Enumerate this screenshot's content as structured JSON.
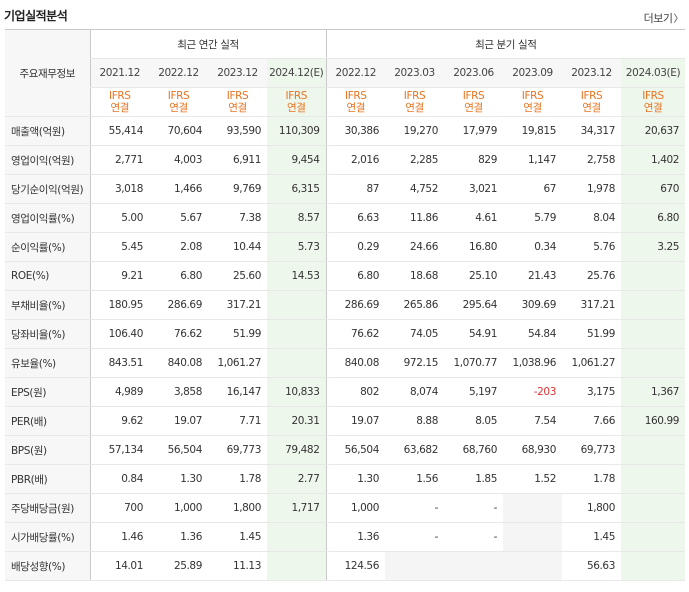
{
  "header": {
    "title": "기업실적분석",
    "more_label": "더보기"
  },
  "table": {
    "label_header": "주요재무정보",
    "annual_group": "최근 연간 실적",
    "quarter_group": "최근 분기 실적",
    "columns": [
      "2021.12",
      "2022.12",
      "2023.12",
      "2024.12(E)",
      "2022.12",
      "2023.03",
      "2023.06",
      "2023.09",
      "2023.12",
      "2024.03(E)"
    ],
    "ifrs_line1": "IFRS",
    "ifrs_line2": "연결",
    "rows": [
      {
        "label": "매출액(억원)",
        "values": [
          "55,414",
          "70,604",
          "93,590",
          "110,309",
          "30,386",
          "19,270",
          "17,979",
          "19,815",
          "34,317",
          "20,637"
        ]
      },
      {
        "label": "영업이익(억원)",
        "values": [
          "2,771",
          "4,003",
          "6,911",
          "9,454",
          "2,016",
          "2,285",
          "829",
          "1,147",
          "2,758",
          "1,402"
        ]
      },
      {
        "label": "당기순이익(억원)",
        "values": [
          "3,018",
          "1,466",
          "9,769",
          "6,315",
          "87",
          "4,752",
          "3,021",
          "67",
          "1,978",
          "670"
        ]
      },
      {
        "label": "영업이익률(%)",
        "values": [
          "5.00",
          "5.67",
          "7.38",
          "8.57",
          "6.63",
          "11.86",
          "4.61",
          "5.79",
          "8.04",
          "6.80"
        ]
      },
      {
        "label": "순이익률(%)",
        "values": [
          "5.45",
          "2.08",
          "10.44",
          "5.73",
          "0.29",
          "24.66",
          "16.80",
          "0.34",
          "5.76",
          "3.25"
        ]
      },
      {
        "label": "ROE(%)",
        "values": [
          "9.21",
          "6.80",
          "25.60",
          "14.53",
          "6.80",
          "18.68",
          "25.10",
          "21.43",
          "25.76",
          ""
        ]
      },
      {
        "label": "부채비율(%)",
        "values": [
          "180.95",
          "286.69",
          "317.21",
          "",
          "286.69",
          "265.86",
          "295.64",
          "309.69",
          "317.21",
          ""
        ]
      },
      {
        "label": "당좌비율(%)",
        "values": [
          "106.40",
          "76.62",
          "51.99",
          "",
          "76.62",
          "74.05",
          "54.91",
          "54.84",
          "51.99",
          ""
        ]
      },
      {
        "label": "유보율(%)",
        "values": [
          "843.51",
          "840.08",
          "1,061.27",
          "",
          "840.08",
          "972.15",
          "1,070.77",
          "1,038.96",
          "1,061.27",
          ""
        ]
      },
      {
        "label": "EPS(원)",
        "values": [
          "4,989",
          "3,858",
          "16,147",
          "10,833",
          "802",
          "8,074",
          "5,197",
          "-203",
          "3,175",
          "1,367"
        ]
      },
      {
        "label": "PER(배)",
        "values": [
          "9.62",
          "19.07",
          "7.71",
          "20.31",
          "19.07",
          "8.88",
          "8.05",
          "7.54",
          "7.66",
          "160.99"
        ]
      },
      {
        "label": "BPS(원)",
        "values": [
          "57,134",
          "56,504",
          "69,773",
          "79,482",
          "56,504",
          "63,682",
          "68,760",
          "68,930",
          "69,773",
          ""
        ]
      },
      {
        "label": "PBR(배)",
        "values": [
          "0.84",
          "1.30",
          "1.78",
          "2.77",
          "1.30",
          "1.56",
          "1.85",
          "1.52",
          "1.78",
          ""
        ]
      },
      {
        "label": "주당배당금(원)",
        "values": [
          "700",
          "1,000",
          "1,800",
          "1,717",
          "1,000",
          "-",
          "-",
          "",
          "1,800",
          ""
        ]
      },
      {
        "label": "시가배당률(%)",
        "values": [
          "1.46",
          "1.36",
          "1.45",
          "",
          "1.36",
          "-",
          "-",
          "",
          "1.45",
          ""
        ]
      },
      {
        "label": "배당성향(%)",
        "values": [
          "14.01",
          "25.89",
          "11.13",
          "",
          "124.56",
          "",
          "",
          "",
          "56.63",
          ""
        ]
      }
    ]
  },
  "colors": {
    "accent_orange": "#e8731f",
    "negative_red": "#e03030",
    "estimate_bg": "#eef7ec"
  }
}
